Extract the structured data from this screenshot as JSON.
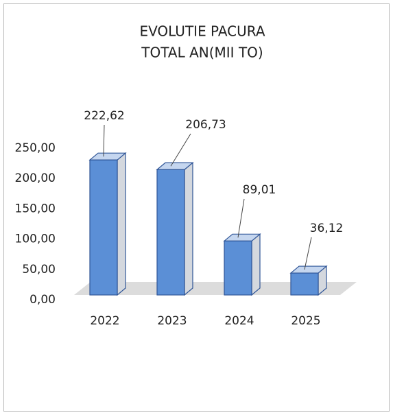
{
  "chart_data": {
    "type": "bar3d",
    "title": "EVOLUTIE PACURA",
    "subtitle": "TOTAL AN(MII TO)",
    "categories": [
      "2022",
      "2023",
      "2024",
      "2025"
    ],
    "values": [
      222.62,
      206.73,
      89.01,
      36.12
    ],
    "value_labels": [
      "222,62",
      "206,73",
      "89,01",
      "36,12"
    ],
    "color": "#5b8fd6",
    "ylim": [
      0,
      250
    ],
    "yticks": [
      {
        "value": 0,
        "label": "0,00"
      },
      {
        "value": 50,
        "label": "50,00"
      },
      {
        "value": 100,
        "label": "100,00"
      },
      {
        "value": 150,
        "label": "150,00"
      },
      {
        "value": 200,
        "label": "200,00"
      },
      {
        "value": 250,
        "label": "250,00"
      }
    ],
    "grid": false
  }
}
